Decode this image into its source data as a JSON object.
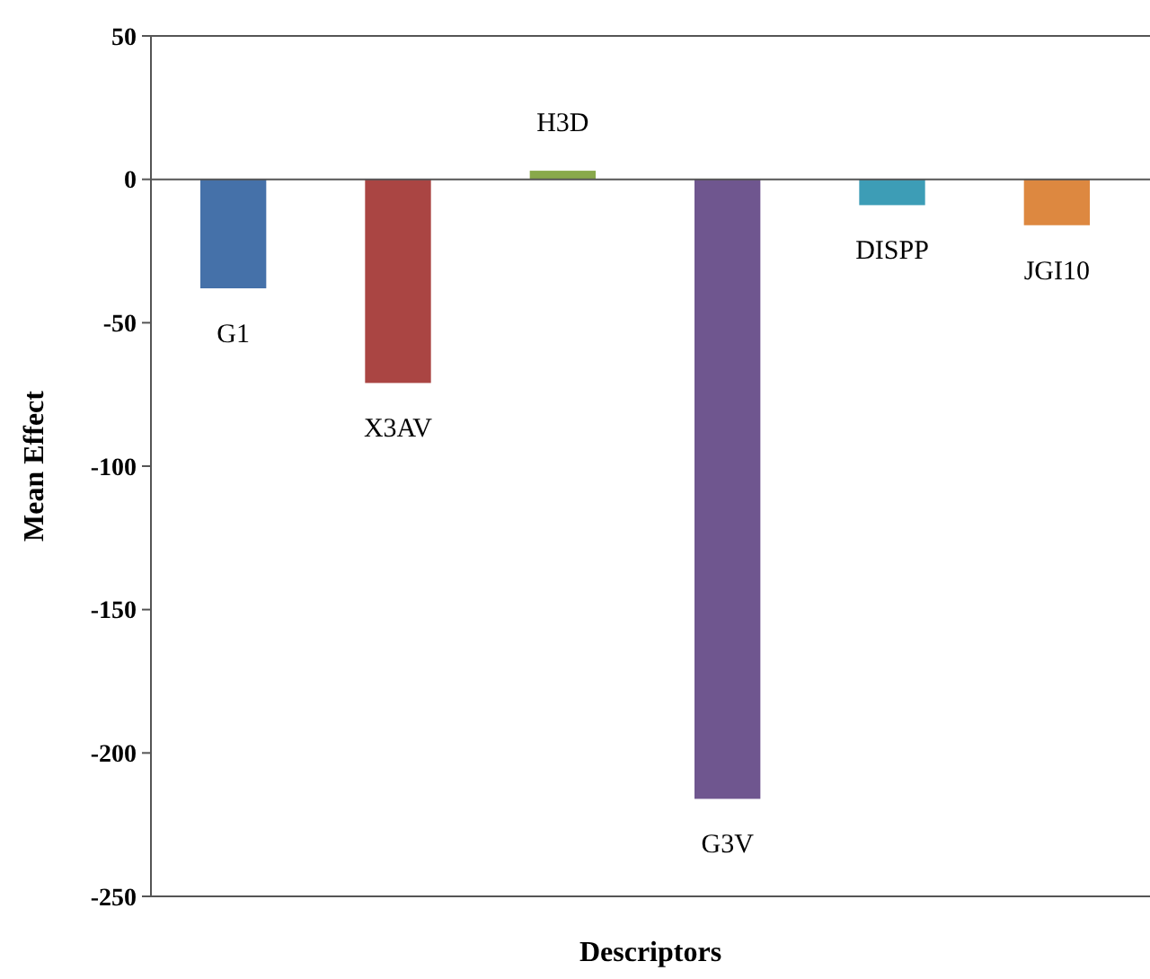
{
  "chart_data": {
    "type": "bar",
    "xlabel": "Descriptors",
    "ylabel": "Mean Effect",
    "categories": [
      "G1",
      "X3AV",
      "H3D",
      "G3V",
      "DISPP",
      "JGI10"
    ],
    "values": [
      -38,
      -71,
      3,
      -216,
      -9,
      -16
    ],
    "colors": [
      "#4571a9",
      "#aa4543",
      "#89a94b",
      "#6f568f",
      "#3d9db6",
      "#dd8840"
    ],
    "ylim": [
      -250,
      50
    ],
    "yticks": [
      50,
      0,
      -50,
      -100,
      -150,
      -200,
      -250
    ]
  }
}
